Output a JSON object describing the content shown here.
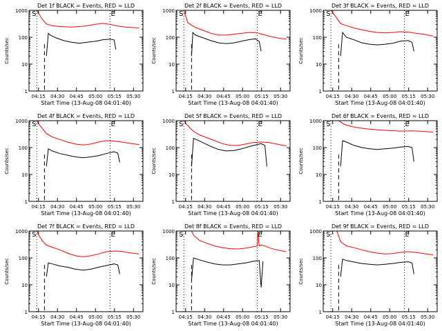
{
  "figure": {
    "ylabel": "Counts/sec",
    "xlabel": "Start Time (13-Aug-08 04:01:40)",
    "marker_S": "S",
    "marker_E": "E",
    "colors": {
      "events": "#000000",
      "lld": "#ff0000",
      "axes": "#000000"
    }
  },
  "chart_data": [
    {
      "type": "line",
      "title": "Det 1f BLACK = Events, RED = LLD",
      "xlabel": "Start Time (13-Aug-08 04:01:40)",
      "ylabel": "Counts/sec",
      "yscale": "log",
      "ylim": [
        1,
        1000
      ],
      "yticks": [
        "1",
        "10",
        "100",
        "1000"
      ],
      "xlim": [
        "04:07:00",
        "04:36:30"
      ],
      "xticks": [
        "04:15",
        "04:30",
        "04:45",
        "05:00",
        "05:15",
        "05:30"
      ],
      "dotted_lines": [
        "04:09:00",
        "04:28:00"
      ],
      "dashed_line": "04:11:00",
      "series": [
        {
          "name": "LLD",
          "color": "#ff0000",
          "x": [
            "04:09:00",
            "04:09:30",
            "04:10:30",
            "04:11:30",
            "04:13:00",
            "04:15:00",
            "04:18:00",
            "04:20:00",
            "04:22:00",
            "04:24:00",
            "04:26:00",
            "04:28:00",
            "04:30:00",
            "04:32:00",
            "04:35:30"
          ],
          "y": [
            1000,
            750,
            450,
            310,
            270,
            250,
            240,
            250,
            265,
            300,
            330,
            300,
            260,
            240,
            220
          ]
        },
        {
          "name": "Events",
          "color": "#000000",
          "x": [
            "04:11:30",
            "04:12:00",
            "04:12:30",
            "04:14:00",
            "04:16:00",
            "04:18:00",
            "04:20:00",
            "04:22:00",
            "04:24:00",
            "04:26:00",
            "04:28:00",
            "04:29:00",
            "04:29:30"
          ],
          "y": [
            20,
            140,
            120,
            95,
            75,
            65,
            60,
            65,
            70,
            80,
            85,
            80,
            35
          ]
        }
      ]
    },
    {
      "type": "line",
      "title": "Det 2f BLACK = Events, RED = LLD",
      "xlabel": "Start Time (13-Aug-08 04:01:40)",
      "ylabel": "Counts/sec",
      "yscale": "log",
      "ylim": [
        1,
        1000
      ],
      "yticks": [
        "1",
        "10",
        "100",
        "1000"
      ],
      "xlim": [
        "04:07:00",
        "04:36:30"
      ],
      "xticks": [
        "04:15",
        "04:30",
        "04:45",
        "05:00",
        "05:15",
        "05:30"
      ],
      "dotted_lines": [
        "04:09:00",
        "04:28:00"
      ],
      "dashed_line": "04:11:00",
      "series": [
        {
          "name": "LLD",
          "color": "#ff0000",
          "x": [
            "04:09:00",
            "04:09:30",
            "04:10:00",
            "04:11:00",
            "04:12:00",
            "04:14:00",
            "04:16:00",
            "04:18:00",
            "04:20:00",
            "04:22:00",
            "04:24:00",
            "04:26:00",
            "04:28:00",
            "04:30:00",
            "04:33:00",
            "04:35:30"
          ],
          "y": [
            1000,
            600,
            350,
            280,
            230,
            180,
            140,
            120,
            120,
            130,
            140,
            150,
            145,
            120,
            95,
            85
          ]
        },
        {
          "name": "Events",
          "color": "#000000",
          "x": [
            "04:11:00",
            "04:11:20",
            "04:12:00",
            "04:14:00",
            "04:16:00",
            "04:18:00",
            "04:20:00",
            "04:22:00",
            "04:24:00",
            "04:26:00",
            "04:27:30",
            "04:28:30",
            "04:29:00"
          ],
          "y": [
            20,
            150,
            120,
            95,
            75,
            62,
            58,
            62,
            72,
            82,
            88,
            70,
            30
          ]
        }
      ]
    },
    {
      "type": "line",
      "title": "Det 3f BLACK = Events, RED = LLD",
      "xlabel": "Start Time (13-Aug-08 04:01:40)",
      "ylabel": "Counts/sec",
      "yscale": "log",
      "ylim": [
        1,
        1000
      ],
      "yticks": [
        "1",
        "10",
        "100",
        "1000"
      ],
      "xlim": [
        "04:07:00",
        "04:36:30"
      ],
      "xticks": [
        "04:15",
        "04:30",
        "04:45",
        "05:00",
        "05:15",
        "05:30"
      ],
      "dotted_lines": [
        "04:09:00",
        "04:28:00"
      ],
      "dashed_line": "04:11:00",
      "series": [
        {
          "name": "LLD",
          "color": "#ff0000",
          "x": [
            "04:09:00",
            "04:10:00",
            "04:11:30",
            "04:13:00",
            "04:15:00",
            "04:17:00",
            "04:19:00",
            "04:21:00",
            "04:23:00",
            "04:25:00",
            "04:27:00",
            "04:29:00",
            "04:31:00",
            "04:33:00",
            "04:35:30"
          ],
          "y": [
            1000,
            650,
            320,
            270,
            220,
            190,
            165,
            150,
            145,
            150,
            160,
            155,
            140,
            130,
            110
          ]
        },
        {
          "name": "Events",
          "color": "#000000",
          "x": [
            "04:11:30",
            "04:12:00",
            "04:13:00",
            "04:15:00",
            "04:17:00",
            "04:19:00",
            "04:21:00",
            "04:23:00",
            "04:25:00",
            "04:27:00",
            "04:29:00",
            "04:30:00",
            "04:30:30"
          ],
          "y": [
            20,
            150,
            100,
            80,
            62,
            55,
            52,
            55,
            60,
            72,
            75,
            65,
            30
          ]
        }
      ]
    },
    {
      "type": "line",
      "title": "Det 4f BLACK = Events, RED = LLD",
      "xlabel": "Start Time (13-Aug-08 04:01:40)",
      "ylabel": "Counts/sec",
      "yscale": "log",
      "ylim": [
        1,
        1000
      ],
      "yticks": [
        "1",
        "10",
        "100",
        "1000"
      ],
      "xlim": [
        "04:07:00",
        "04:36:30"
      ],
      "xticks": [
        "04:15",
        "04:30",
        "04:45",
        "05:00",
        "05:15",
        "05:30"
      ],
      "dotted_lines": [
        "04:09:00",
        "04:28:00"
      ],
      "dashed_line": "04:11:00",
      "series": [
        {
          "name": "LLD",
          "color": "#ff0000",
          "x": [
            "04:09:00",
            "04:09:30",
            "04:10:30",
            "04:11:30",
            "04:13:00",
            "04:15:00",
            "04:17:00",
            "04:19:00",
            "04:21:00",
            "04:23:00",
            "04:25:00",
            "04:27:00",
            "04:29:00",
            "04:31:00",
            "04:33:00",
            "04:35:30"
          ],
          "y": [
            1000,
            750,
            500,
            330,
            250,
            200,
            160,
            135,
            125,
            135,
            160,
            180,
            175,
            160,
            145,
            130
          ]
        },
        {
          "name": "Events",
          "color": "#000000",
          "x": [
            "04:11:30",
            "04:12:00",
            "04:13:00",
            "04:15:00",
            "04:17:00",
            "04:19:00",
            "04:21:00",
            "04:23:00",
            "04:25:00",
            "04:27:00",
            "04:29:00",
            "04:30:00",
            "04:30:30"
          ],
          "y": [
            20,
            90,
            75,
            60,
            52,
            45,
            42,
            45,
            50,
            60,
            70,
            62,
            28
          ]
        }
      ]
    },
    {
      "type": "line",
      "title": "Det 5f BLACK = Events, RED = LLD",
      "xlabel": "Start Time (13-Aug-08 04:01:40)",
      "ylabel": "Counts/sec",
      "yscale": "log",
      "ylim": [
        1,
        1000
      ],
      "yticks": [
        "1",
        "10",
        "100",
        "1000"
      ],
      "xlim": [
        "04:07:00",
        "04:36:30"
      ],
      "xticks": [
        "04:15",
        "04:30",
        "04:45",
        "05:00",
        "05:15",
        "05:30"
      ],
      "dotted_lines": [
        "04:09:00",
        "04:28:00"
      ],
      "dashed_line": "04:11:00",
      "series": [
        {
          "name": "LLD",
          "color": "#ff0000",
          "x": [
            "04:09:00",
            "04:09:30",
            "04:10:30",
            "04:11:30",
            "04:13:00",
            "04:15:00",
            "04:17:00",
            "04:19:00",
            "04:21:00",
            "04:23:00",
            "04:25:00",
            "04:27:00",
            "04:29:00",
            "04:31:00",
            "04:33:00",
            "04:35:30"
          ],
          "y": [
            1000,
            800,
            550,
            400,
            300,
            230,
            180,
            140,
            120,
            120,
            135,
            155,
            160,
            155,
            135,
            115
          ]
        },
        {
          "name": "Events",
          "color": "#000000",
          "x": [
            "04:11:00",
            "04:11:30",
            "04:12:30",
            "04:14:00",
            "04:16:00",
            "04:18:00",
            "04:20:00",
            "04:22:00",
            "04:24:00",
            "04:26:00",
            "04:28:00",
            "04:29:00",
            "04:30:00",
            "04:30:30"
          ],
          "y": [
            20,
            220,
            190,
            150,
            110,
            85,
            75,
            78,
            90,
            110,
            130,
            140,
            120,
            20
          ]
        }
      ]
    },
    {
      "type": "line",
      "title": "Det 6f BLACK = Events, RED = LLD",
      "xlabel": "Start Time (13-Aug-08 04:01:40)",
      "ylabel": "Counts/sec",
      "yscale": "log",
      "ylim": [
        1,
        1000
      ],
      "yticks": [
        "1",
        "10",
        "100",
        "1000"
      ],
      "xlim": [
        "04:07:00",
        "04:36:30"
      ],
      "xticks": [
        "04:15",
        "04:30",
        "04:45",
        "05:00",
        "05:15",
        "05:30"
      ],
      "dotted_lines": [
        "04:09:00",
        "04:28:00"
      ],
      "dashed_line": "04:11:00",
      "series": [
        {
          "name": "LLD",
          "color": "#ff0000",
          "x": [
            "04:11:00",
            "04:12:00",
            "04:13:00",
            "04:15:00",
            "04:18:00",
            "04:21:00",
            "04:24:00",
            "04:27:00",
            "04:30:00",
            "04:33:00",
            "04:35:30"
          ],
          "y": [
            1000,
            800,
            680,
            580,
            500,
            460,
            430,
            410,
            420,
            400,
            370
          ]
        },
        {
          "name": "Events",
          "color": "#000000",
          "x": [
            "04:11:30",
            "04:12:00",
            "04:13:00",
            "04:15:00",
            "04:17:00",
            "04:19:00",
            "04:21:00",
            "04:23:00",
            "04:25:00",
            "04:27:00",
            "04:29:00",
            "04:30:00",
            "04:30:30"
          ],
          "y": [
            20,
            180,
            160,
            120,
            100,
            90,
            85,
            90,
            95,
            105,
            110,
            100,
            30
          ]
        }
      ]
    },
    {
      "type": "line",
      "title": "Det 7f BLACK = Events, RED = LLD",
      "xlabel": "Start Time (13-Aug-08 04:01:40)",
      "ylabel": "Counts/sec",
      "yscale": "log",
      "ylim": [
        1,
        1000
      ],
      "yticks": [
        "1",
        "10",
        "100",
        "1000"
      ],
      "xlim": [
        "04:07:00",
        "04:36:30"
      ],
      "xticks": [
        "04:15",
        "04:30",
        "04:45",
        "05:00",
        "05:15",
        "05:30"
      ],
      "dotted_lines": [
        "04:09:00",
        "04:28:00"
      ],
      "dashed_line": "04:11:00",
      "series": [
        {
          "name": "LLD",
          "color": "#ff0000",
          "x": [
            "04:09:00",
            "04:09:30",
            "04:10:30",
            "04:11:30",
            "04:13:00",
            "04:15:00",
            "04:17:00",
            "04:19:00",
            "04:21:00",
            "04:23:00",
            "04:25:00",
            "04:27:00",
            "04:29:00",
            "04:31:00",
            "04:33:00",
            "04:35:30"
          ],
          "y": [
            1000,
            700,
            420,
            300,
            250,
            200,
            150,
            120,
            110,
            120,
            140,
            170,
            180,
            175,
            155,
            140
          ]
        },
        {
          "name": "Events",
          "color": "#000000",
          "x": [
            "04:11:30",
            "04:12:00",
            "04:13:00",
            "04:15:00",
            "04:17:00",
            "04:19:00",
            "04:21:00",
            "04:23:00",
            "04:25:00",
            "04:27:00",
            "04:29:00",
            "04:30:00",
            "04:30:30"
          ],
          "y": [
            20,
            65,
            60,
            50,
            45,
            38,
            35,
            38,
            45,
            52,
            60,
            55,
            25
          ]
        }
      ]
    },
    {
      "type": "line",
      "title": "Det 8f BLACK = Events, RED = LLD",
      "xlabel": "Start Time (13-Aug-08 04:01:40)",
      "ylabel": "Counts/sec",
      "yscale": "log",
      "ylim": [
        1,
        1000
      ],
      "yticks": [
        "1",
        "10",
        "100",
        "1000"
      ],
      "xlim": [
        "04:07:00",
        "04:36:30"
      ],
      "xticks": [
        "04:15",
        "04:30",
        "04:45",
        "05:00",
        "05:15",
        "05:30"
      ],
      "dotted_lines": [
        "04:09:00",
        "04:28:00"
      ],
      "dashed_line": "04:11:00",
      "series": [
        {
          "name": "LLD",
          "color": "#ff0000",
          "x": [
            "04:11:00",
            "04:11:30",
            "04:13:00",
            "04:15:00",
            "04:17:00",
            "04:19:00",
            "04:21:00",
            "04:23:00",
            "04:25:00",
            "04:27:00",
            "04:28:00",
            "04:28:10",
            "04:28:30",
            "04:29:00",
            "04:30:00",
            "04:31:00",
            "04:33:00",
            "04:35:30"
          ],
          "y": [
            1000,
            700,
            450,
            350,
            280,
            240,
            220,
            215,
            230,
            260,
            280,
            1000,
            280,
            300,
            280,
            240,
            200,
            170
          ]
        },
        {
          "name": "Events",
          "color": "#000000",
          "x": [
            "04:11:00",
            "04:11:30",
            "04:13:00",
            "04:15:00",
            "04:17:00",
            "04:19:00",
            "04:21:00",
            "04:23:00",
            "04:25:00",
            "04:27:00",
            "04:28:30",
            "04:29:00",
            "04:29:30"
          ],
          "y": [
            15,
            100,
            85,
            70,
            60,
            55,
            55,
            60,
            65,
            75,
            80,
            8,
            75
          ]
        }
      ]
    },
    {
      "type": "line",
      "title": "Det 9f BLACK = Events, RED = LLD",
      "xlabel": "Start Time (13-Aug-08 04:01:40)",
      "ylabel": "Counts/sec",
      "yscale": "log",
      "ylim": [
        1,
        1000
      ],
      "yticks": [
        "1",
        "10",
        "100",
        "1000"
      ],
      "xlim": [
        "04:07:00",
        "04:36:30"
      ],
      "xticks": [
        "04:15",
        "04:30",
        "04:45",
        "05:00",
        "05:15",
        "05:30"
      ],
      "dotted_lines": [
        "04:09:00",
        "04:28:00"
      ],
      "dashed_line": "04:11:00",
      "series": [
        {
          "name": "LLD",
          "color": "#ff0000",
          "x": [
            "04:10:30",
            "04:11:30",
            "04:13:00",
            "04:15:00",
            "04:17:00",
            "04:19:00",
            "04:21:00",
            "04:23:00",
            "04:25:00",
            "04:27:00",
            "04:29:00",
            "04:31:00",
            "04:33:00",
            "04:35:30"
          ],
          "y": [
            1000,
            400,
            280,
            240,
            200,
            170,
            150,
            140,
            145,
            160,
            170,
            160,
            145,
            130
          ]
        },
        {
          "name": "Events",
          "color": "#000000",
          "x": [
            "04:11:30",
            "04:12:00",
            "04:13:00",
            "04:15:00",
            "04:17:00",
            "04:19:00",
            "04:21:00",
            "04:23:00",
            "04:25:00",
            "04:27:00",
            "04:29:00",
            "04:30:00",
            "04:30:30"
          ],
          "y": [
            20,
            90,
            80,
            70,
            62,
            58,
            55,
            58,
            62,
            68,
            72,
            65,
            25
          ]
        }
      ]
    }
  ]
}
